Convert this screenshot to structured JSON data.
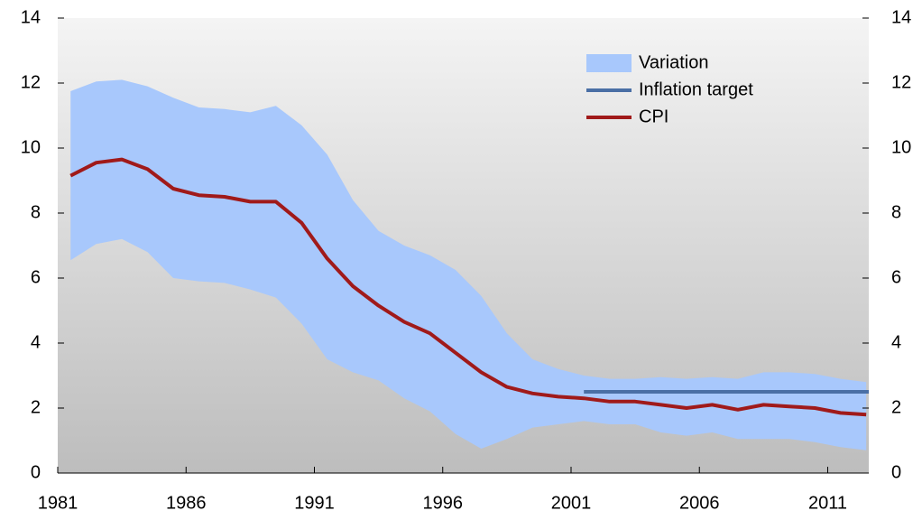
{
  "chart_data": {
    "type": "line",
    "x": [
      1981.5,
      1982.5,
      1983.5,
      1984.5,
      1985.5,
      1986.5,
      1987.5,
      1988.5,
      1989.5,
      1990.5,
      1991.5,
      1992.5,
      1993.5,
      1994.5,
      1995.5,
      1996.5,
      1997.5,
      1998.5,
      1999.5,
      2000.5,
      2001.5,
      2002.5,
      2003.5,
      2004.5,
      2005.5,
      2006.5,
      2007.5,
      2008.5,
      2009.5,
      2010.5,
      2011.5,
      2012.5
    ],
    "series": [
      {
        "name": "Variation",
        "color": "#a8c8fc",
        "values": [
          11.75,
          12.05,
          12.1,
          11.9,
          11.55,
          11.25,
          11.2,
          11.1,
          11.3,
          10.7,
          9.8,
          8.4,
          7.45,
          7.0,
          6.7,
          6.25,
          5.45,
          4.3,
          3.5,
          3.2,
          3.0,
          2.9,
          2.9,
          2.95,
          2.9,
          2.95,
          2.9,
          3.1,
          3.1,
          3.05,
          2.9,
          2.8
        ],
        "lower": [
          6.55,
          7.05,
          7.2,
          6.8,
          6.0,
          5.9,
          5.85,
          5.65,
          5.4,
          4.6,
          3.5,
          3.1,
          2.85,
          2.3,
          1.9,
          1.2,
          0.75,
          1.05,
          1.4,
          1.5,
          1.6,
          1.5,
          1.5,
          1.25,
          1.15,
          1.25,
          1.05,
          1.05,
          1.05,
          0.95,
          0.8,
          0.7
        ]
      },
      {
        "name": "Inflation target",
        "color": "#4a6fa5",
        "x": [
          2001.5,
          2012.6
        ],
        "values": [
          2.5,
          2.5
        ]
      },
      {
        "name": "CPI",
        "color": "#a01a1a",
        "values": [
          9.15,
          9.55,
          9.65,
          9.35,
          8.75,
          8.55,
          8.5,
          8.35,
          8.35,
          7.7,
          6.6,
          5.75,
          5.15,
          4.65,
          4.3,
          3.7,
          3.1,
          2.65,
          2.45,
          2.35,
          2.3,
          2.2,
          2.2,
          2.1,
          2.0,
          2.1,
          1.95,
          2.1,
          2.05,
          2.0,
          1.85,
          1.8
        ]
      }
    ],
    "xlim": [
      1981,
      2012.6
    ],
    "xticks": [
      1981,
      1986,
      1991,
      1996,
      2001,
      2006,
      2011
    ],
    "ylim": [
      0,
      14
    ],
    "yticks": [
      0,
      2,
      4,
      6,
      8,
      10,
      12,
      14
    ],
    "y2lim": [
      0,
      14
    ],
    "y2ticks": [
      0,
      2,
      4,
      6,
      8,
      10,
      12,
      14
    ],
    "legend": "upper-right"
  }
}
